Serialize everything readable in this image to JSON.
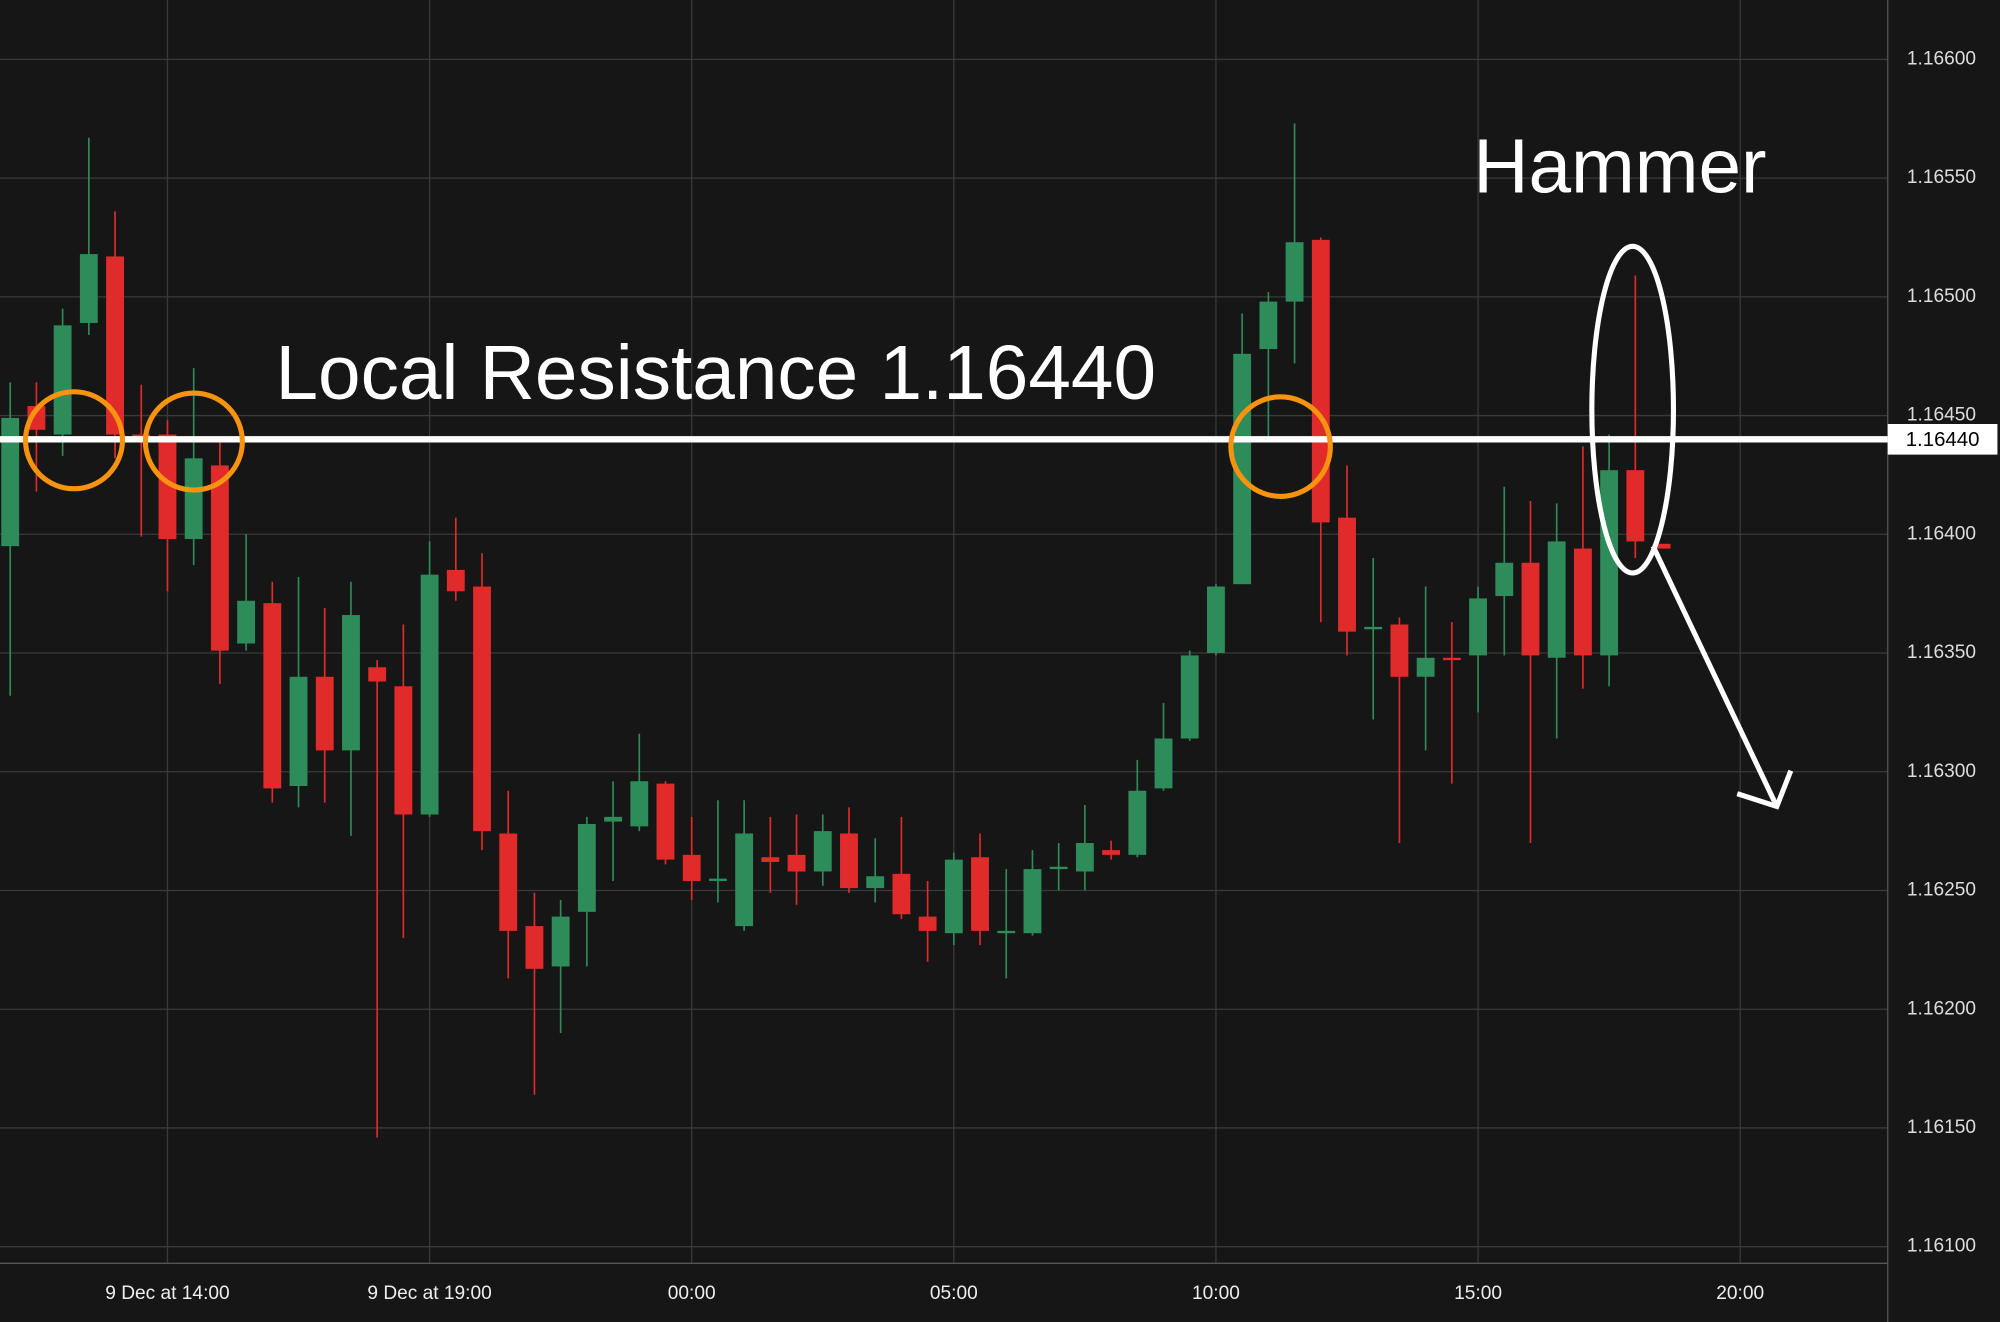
{
  "chart_data": {
    "type": "candlestick",
    "up_color": "#2e8b5a",
    "down_color": "#e12b2b",
    "grid": true,
    "open": [
      1.16395,
      1.16454,
      1.16442,
      1.16489,
      1.16517,
      1.16442,
      1.16442,
      1.16398,
      1.16429,
      1.16354,
      1.16371,
      1.16294,
      1.1634,
      1.16309,
      1.16344,
      1.16336,
      1.16282,
      1.16385,
      1.16378,
      1.16274,
      1.16235,
      1.16218,
      1.16241,
      1.16279,
      1.16277,
      1.16295,
      1.16265,
      1.16254,
      1.16235,
      1.16264,
      1.16265,
      1.16258,
      1.16274,
      1.16251,
      1.16257,
      1.16239,
      1.16232,
      1.16264,
      1.16232,
      1.16232,
      1.16259,
      1.16258,
      1.16267,
      1.16265,
      1.16293,
      1.16314,
      1.1635,
      1.16379,
      1.16478,
      1.16498,
      1.16524,
      1.16407,
      1.1636,
      1.16362,
      1.1634,
      1.16348,
      1.16349,
      1.16374,
      1.16388,
      1.16348,
      1.16394,
      1.16349,
      1.16427,
      1.16396
    ],
    "high": [
      1.16464,
      1.16464,
      1.16495,
      1.16567,
      1.16536,
      1.16463,
      1.16448,
      1.1647,
      1.1644,
      1.164,
      1.1638,
      1.16382,
      1.16369,
      1.1638,
      1.16347,
      1.16362,
      1.16397,
      1.16407,
      1.16392,
      1.16292,
      1.16249,
      1.16246,
      1.16281,
      1.16296,
      1.16316,
      1.16296,
      1.16281,
      1.16288,
      1.16288,
      1.16281,
      1.16282,
      1.16282,
      1.16285,
      1.16272,
      1.16281,
      1.16254,
      1.16266,
      1.16274,
      1.16259,
      1.16267,
      1.1627,
      1.16286,
      1.16271,
      1.16305,
      1.16329,
      1.16351,
      1.16379,
      1.16493,
      1.16502,
      1.16573,
      1.16525,
      1.16429,
      1.1639,
      1.16365,
      1.16378,
      1.16363,
      1.16378,
      1.1642,
      1.16414,
      1.16413,
      1.16437,
      1.16442,
      1.16509,
      1.16396
    ],
    "low": [
      1.16332,
      1.16418,
      1.16433,
      1.16484,
      1.16432,
      1.16399,
      1.16376,
      1.16387,
      1.16337,
      1.16351,
      1.16287,
      1.16285,
      1.16287,
      1.16273,
      1.16146,
      1.1623,
      1.16281,
      1.16372,
      1.16267,
      1.16213,
      1.16164,
      1.1619,
      1.16218,
      1.16254,
      1.16275,
      1.16261,
      1.16246,
      1.16245,
      1.16233,
      1.16249,
      1.16244,
      1.16252,
      1.16249,
      1.16245,
      1.16238,
      1.1622,
      1.16227,
      1.16227,
      1.16213,
      1.16231,
      1.1625,
      1.1625,
      1.16263,
      1.16264,
      1.16292,
      1.16313,
      1.16349,
      1.16379,
      1.1644,
      1.16472,
      1.16363,
      1.16349,
      1.16322,
      1.1627,
      1.16309,
      1.16295,
      1.16325,
      1.16349,
      1.1627,
      1.16314,
      1.16335,
      1.16336,
      1.1639,
      1.16394
    ],
    "close": [
      1.16449,
      1.16444,
      1.16488,
      1.16518,
      1.16442,
      1.1644,
      1.16398,
      1.16432,
      1.16351,
      1.16372,
      1.16293,
      1.1634,
      1.16309,
      1.16366,
      1.16338,
      1.16282,
      1.16383,
      1.16376,
      1.16275,
      1.16233,
      1.16217,
      1.16239,
      1.16278,
      1.16281,
      1.16296,
      1.16263,
      1.16254,
      1.16255,
      1.16274,
      1.16262,
      1.16258,
      1.16275,
      1.16251,
      1.16256,
      1.1624,
      1.16233,
      1.16263,
      1.16233,
      1.16233,
      1.16259,
      1.1626,
      1.1627,
      1.16265,
      1.16292,
      1.16314,
      1.16349,
      1.16378,
      1.16476,
      1.16498,
      1.16523,
      1.16405,
      1.16359,
      1.16361,
      1.1634,
      1.16348,
      1.16347,
      1.16373,
      1.16388,
      1.16349,
      1.16397,
      1.16349,
      1.16427,
      1.16397,
      1.16394
    ],
    "ylim": [
      1.16093,
      1.16625
    ],
    "yticks": [
      {
        "value": 1.166,
        "label": "1.16600"
      },
      {
        "value": 1.1655,
        "label": "1.16550"
      },
      {
        "value": 1.165,
        "label": "1.16500"
      },
      {
        "value": 1.1645,
        "label": "1.16450"
      },
      {
        "value": 1.164,
        "label": "1.16400"
      },
      {
        "value": 1.1635,
        "label": "1.16350"
      },
      {
        "value": 1.163,
        "label": "1.16300"
      },
      {
        "value": 1.1625,
        "label": "1.16250"
      },
      {
        "value": 1.162,
        "label": "1.16200"
      },
      {
        "value": 1.1615,
        "label": "1.16150"
      },
      {
        "value": 1.161,
        "label": "1.16100"
      }
    ],
    "xticks": [
      {
        "value": 6,
        "label": "9 Dec at 14:00"
      },
      {
        "value": 16,
        "label": "9 Dec at 19:00"
      },
      {
        "value": 26,
        "label": "00:00"
      },
      {
        "value": 36,
        "label": "05:00"
      },
      {
        "value": 46,
        "label": "10:00"
      },
      {
        "value": 56,
        "label": "15:00"
      },
      {
        "value": 66,
        "label": "20:00"
      }
    ],
    "resistance": {
      "value": 1.1644,
      "label": "1.16440"
    },
    "annotations": [
      "Local Resistance 1.16440",
      "Hammer"
    ]
  }
}
